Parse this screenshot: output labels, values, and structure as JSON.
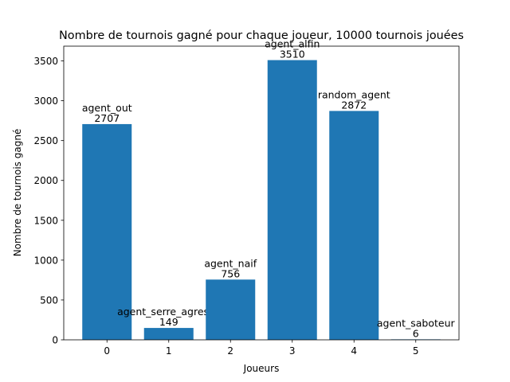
{
  "chart_data": {
    "type": "bar",
    "title": "Nombre de tournois gagné pour chaque joueur, 10000 tournois jouées",
    "xlabel": "Joueurs",
    "ylabel": "Nombre de tournois gagné",
    "categories": [
      "0",
      "1",
      "2",
      "3",
      "4",
      "5"
    ],
    "values": [
      2707,
      149,
      756,
      3510,
      2872,
      6
    ],
    "bar_names": [
      "agent_out",
      "agent_serre_agressif",
      "agent_naif",
      "agent_alfin",
      "random_agent",
      "agent_saboteur"
    ],
    "ylim": [
      0,
      3685
    ],
    "yticks": [
      0,
      500,
      1000,
      1500,
      2000,
      2500,
      3000,
      3500
    ],
    "xlim": [
      -0.7,
      5.7
    ],
    "grid": false,
    "bar_color": "#1f77b4"
  }
}
